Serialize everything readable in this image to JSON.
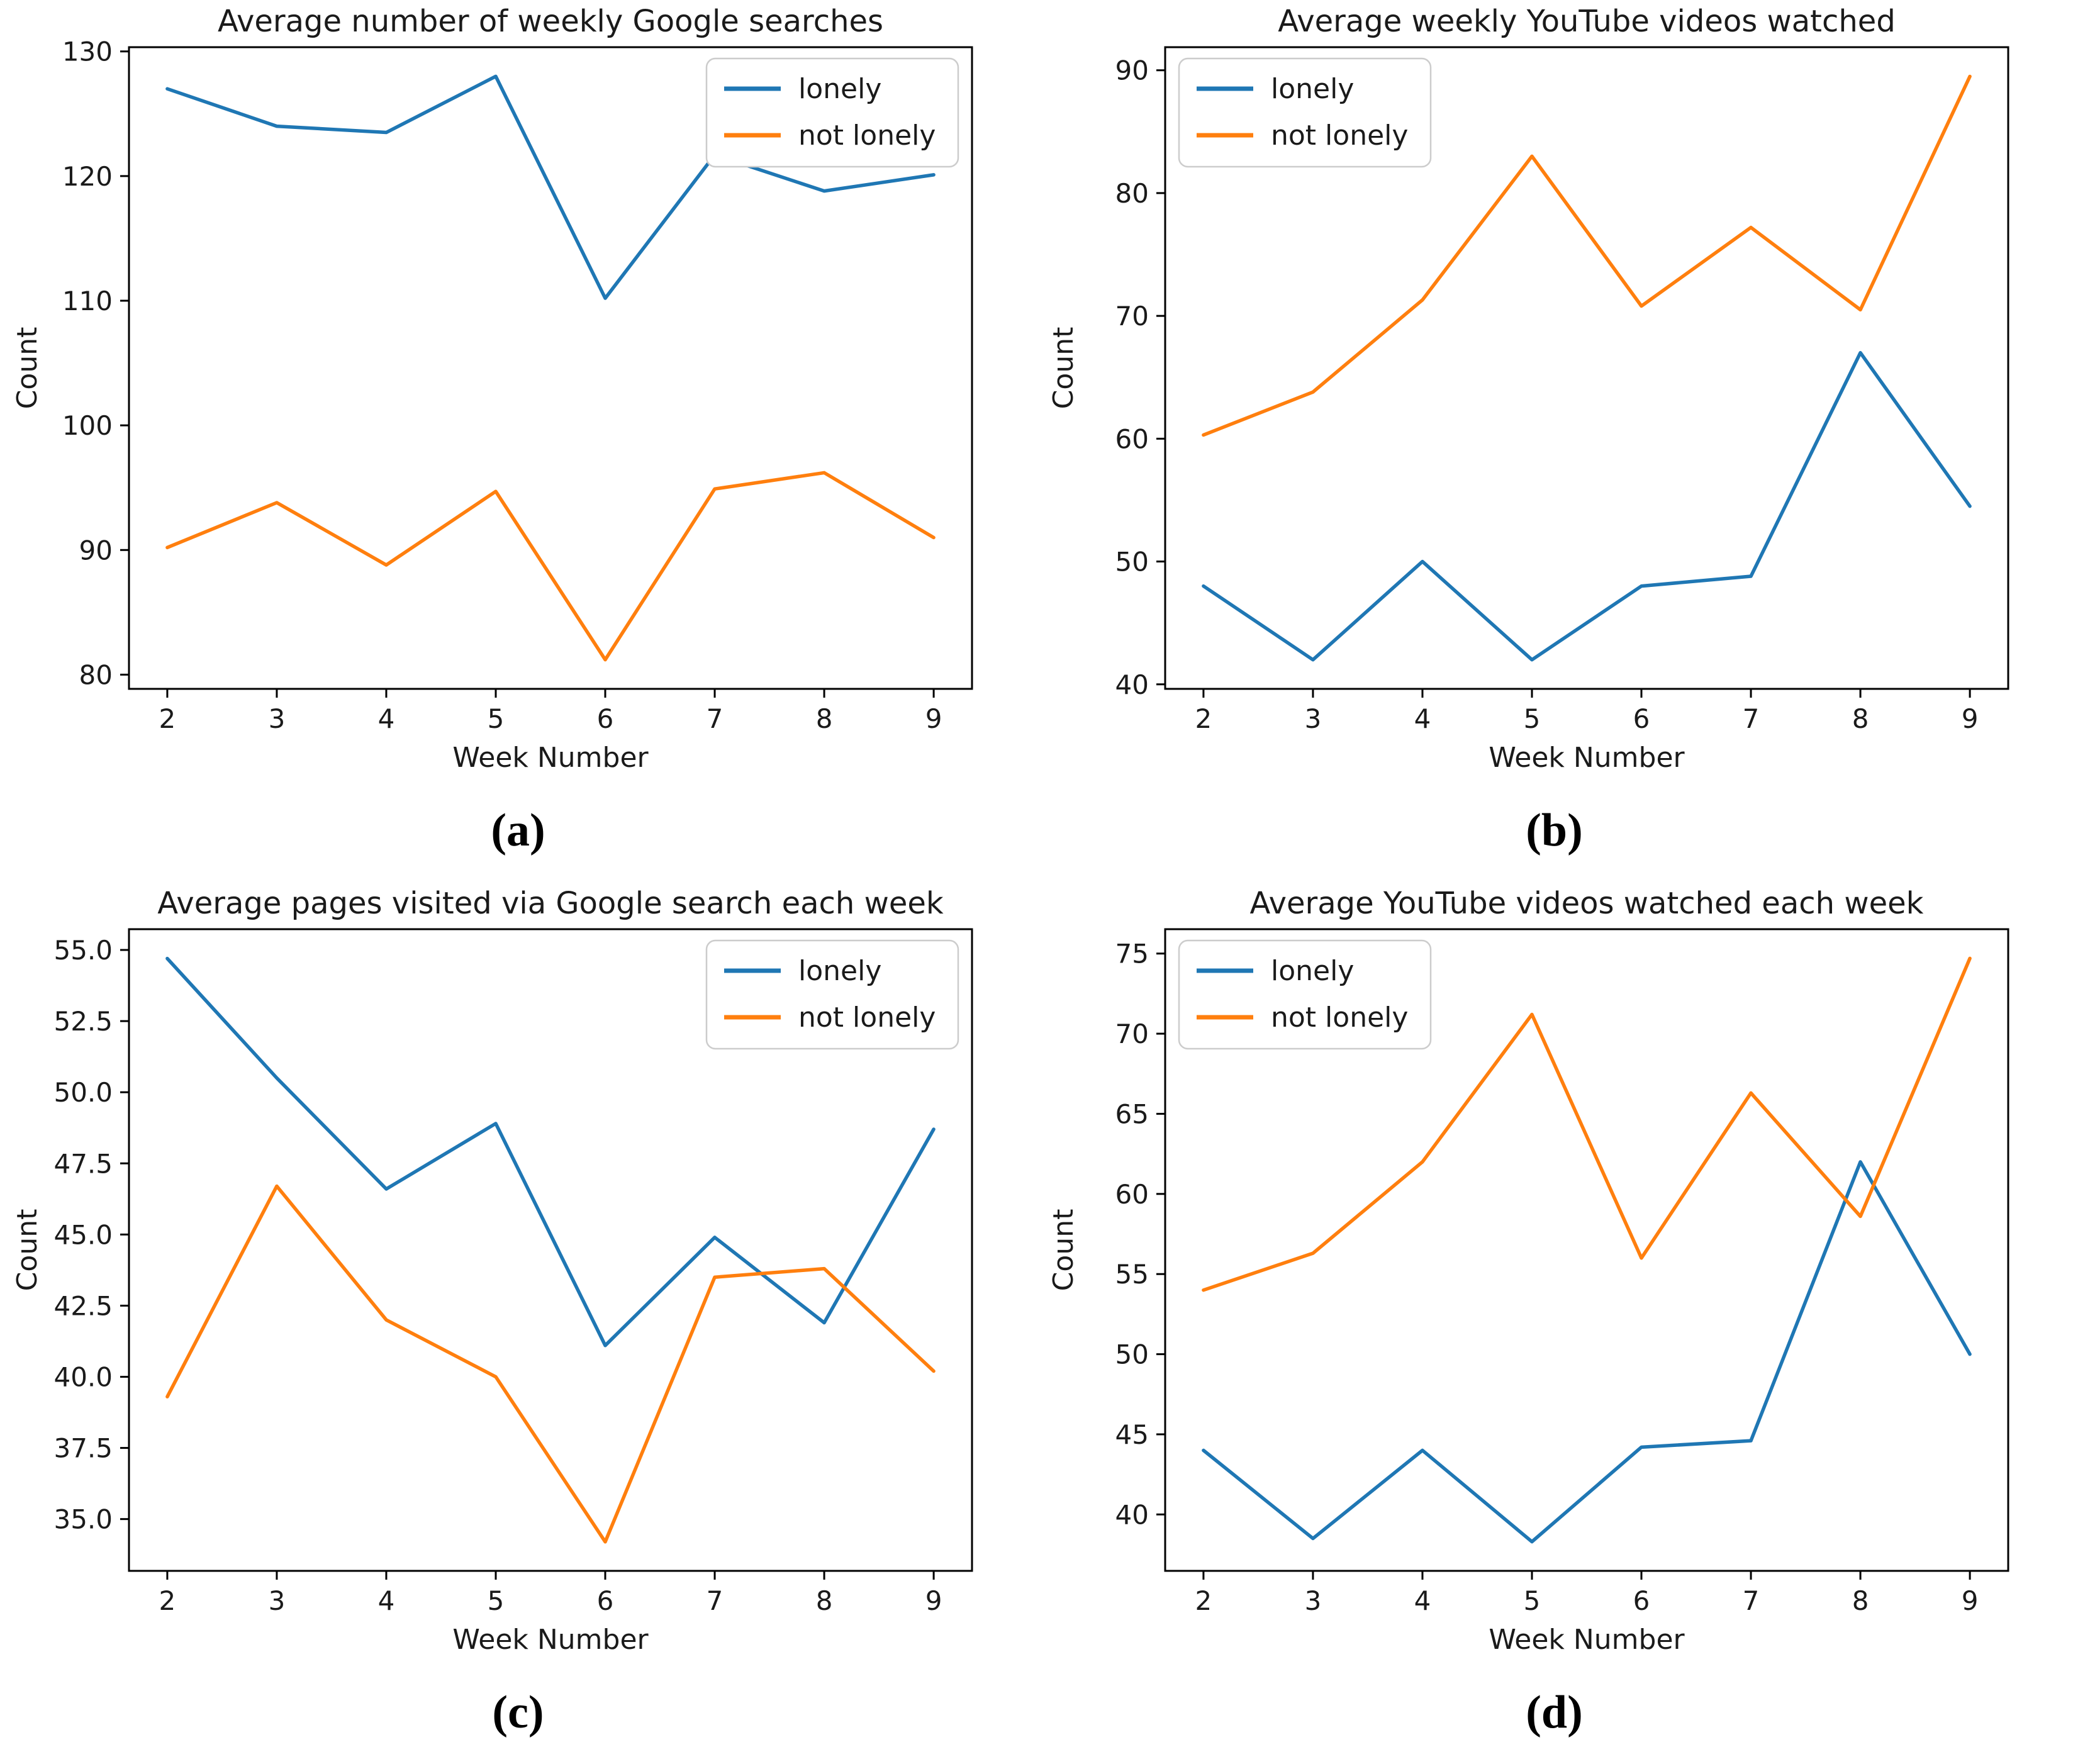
{
  "page": {
    "background": "#ffffff"
  },
  "colors": {
    "lonely": "#1f77b4",
    "not_lonely": "#ff7f0e",
    "axis": "#000000",
    "text": "#1a1a1a",
    "legend_border": "#cccccc"
  },
  "chart_data": [
    {
      "id": "a",
      "type": "line",
      "title": "Average number of weekly Google searches",
      "xlabel": "Week Number",
      "ylabel": "Count",
      "caption": "(a)",
      "grid": false,
      "legend_position": "top-right",
      "x": [
        2,
        3,
        4,
        5,
        6,
        7,
        8,
        9
      ],
      "xtick_labels": [
        "2",
        "3",
        "4",
        "5",
        "6",
        "7",
        "8",
        "9"
      ],
      "xlim": [
        1.65,
        9.35
      ],
      "ylim": [
        78.86,
        130.34
      ],
      "yticks": [
        80,
        90,
        100,
        110,
        120,
        130
      ],
      "ytick_labels": [
        "80",
        "90",
        "100",
        "110",
        "120",
        "130"
      ],
      "series": [
        {
          "name": "lonely",
          "color": "#1f77b4",
          "values": [
            127.0,
            124.0,
            123.5,
            128.0,
            110.2,
            121.7,
            118.8,
            120.1
          ]
        },
        {
          "name": "not lonely",
          "color": "#ff7f0e",
          "values": [
            90.2,
            93.8,
            88.8,
            94.7,
            81.2,
            94.9,
            96.2,
            91.0
          ]
        }
      ]
    },
    {
      "id": "b",
      "type": "line",
      "title": "Average weekly YouTube videos watched",
      "xlabel": "Week Number",
      "ylabel": "Count",
      "caption": "(b)",
      "grid": false,
      "legend_position": "top-left",
      "x": [
        2,
        3,
        4,
        5,
        6,
        7,
        8,
        9
      ],
      "xtick_labels": [
        "2",
        "3",
        "4",
        "5",
        "6",
        "7",
        "8",
        "9"
      ],
      "xlim": [
        1.65,
        9.35
      ],
      "ylim": [
        39.63,
        91.88
      ],
      "yticks": [
        40,
        50,
        60,
        70,
        80,
        90
      ],
      "ytick_labels": [
        "40",
        "50",
        "60",
        "70",
        "80",
        "90"
      ],
      "series": [
        {
          "name": "lonely",
          "color": "#1f77b4",
          "values": [
            48.0,
            42.0,
            50.0,
            42.0,
            48.0,
            48.8,
            67.0,
            54.5
          ]
        },
        {
          "name": "not lonely",
          "color": "#ff7f0e",
          "values": [
            60.3,
            63.8,
            71.3,
            83.0,
            70.8,
            77.2,
            70.5,
            89.5
          ]
        }
      ]
    },
    {
      "id": "c",
      "type": "line",
      "title": "Average pages visited via Google search each week",
      "xlabel": "Week Number",
      "ylabel": "Count",
      "caption": "(c)",
      "grid": false,
      "legend_position": "top-right",
      "x": [
        2,
        3,
        4,
        5,
        6,
        7,
        8,
        9
      ],
      "xtick_labels": [
        "2",
        "3",
        "4",
        "5",
        "6",
        "7",
        "8",
        "9"
      ],
      "xlim": [
        1.65,
        9.35
      ],
      "ylim": [
        33.18,
        55.73
      ],
      "yticks": [
        35.0,
        37.5,
        40.0,
        42.5,
        45.0,
        47.5,
        50.0,
        52.5,
        55.0
      ],
      "ytick_labels": [
        "35.0",
        "37.5",
        "40.0",
        "42.5",
        "45.0",
        "47.5",
        "50.0",
        "52.5",
        "55.0"
      ],
      "series": [
        {
          "name": "lonely",
          "color": "#1f77b4",
          "values": [
            54.7,
            50.5,
            46.6,
            48.9,
            41.1,
            44.9,
            41.9,
            48.7
          ]
        },
        {
          "name": "not lonely",
          "color": "#ff7f0e",
          "values": [
            39.3,
            46.7,
            42.0,
            40.0,
            34.2,
            43.5,
            43.8,
            40.2
          ]
        }
      ]
    },
    {
      "id": "d",
      "type": "line",
      "title": "Average YouTube videos watched each week",
      "xlabel": "Week Number",
      "ylabel": "Count",
      "caption": "(d)",
      "grid": false,
      "legend_position": "top-left",
      "x": [
        2,
        3,
        4,
        5,
        6,
        7,
        8,
        9
      ],
      "xtick_labels": [
        "2",
        "3",
        "4",
        "5",
        "6",
        "7",
        "8",
        "9"
      ],
      "xlim": [
        1.65,
        9.35
      ],
      "ylim": [
        36.48,
        76.52
      ],
      "yticks": [
        40,
        45,
        50,
        55,
        60,
        65,
        70,
        75
      ],
      "ytick_labels": [
        "40",
        "45",
        "50",
        "55",
        "60",
        "65",
        "70",
        "75"
      ],
      "series": [
        {
          "name": "lonely",
          "color": "#1f77b4",
          "values": [
            44.0,
            38.5,
            44.0,
            38.3,
            44.2,
            44.6,
            62.0,
            50.0
          ]
        },
        {
          "name": "not lonely",
          "color": "#ff7f0e",
          "values": [
            54.0,
            56.3,
            62.0,
            71.2,
            56.0,
            66.3,
            58.6,
            74.7
          ]
        }
      ]
    }
  ]
}
